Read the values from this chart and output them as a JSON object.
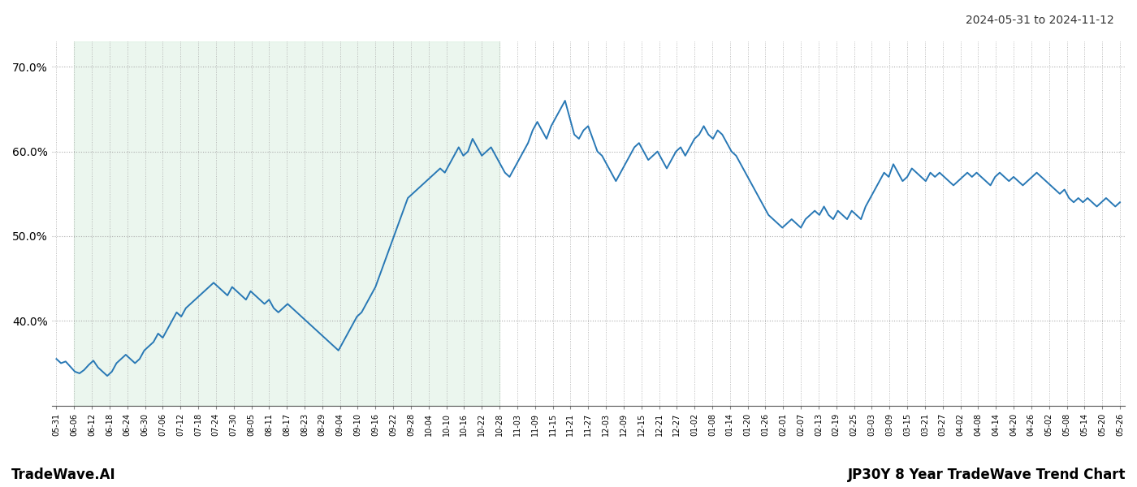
{
  "title_right": "2024-05-31 to 2024-11-12",
  "footer_left": "TradeWave.AI",
  "footer_right": "JP30Y 8 Year TradeWave Trend Chart",
  "line_color": "#2878b5",
  "line_width": 1.4,
  "bg_color": "#ffffff",
  "green_shade_color": "#d4edda",
  "green_shade_alpha": 0.45,
  "ylim": [
    30,
    73
  ],
  "ytick_values": [
    40.0,
    50.0,
    60.0,
    70.0
  ],
  "ytick_labels": [
    "40.0%",
    "50.0%",
    "60.0%",
    "70.0%"
  ],
  "x_tick_labels": [
    "05-31",
    "06-06",
    "06-12",
    "06-18",
    "06-24",
    "06-30",
    "07-06",
    "07-12",
    "07-18",
    "07-24",
    "07-30",
    "08-05",
    "08-11",
    "08-17",
    "08-23",
    "08-29",
    "09-04",
    "09-10",
    "09-16",
    "09-22",
    "09-28",
    "10-04",
    "10-10",
    "10-16",
    "10-22",
    "10-28",
    "11-03",
    "11-09",
    "11-15",
    "11-21",
    "11-27",
    "12-03",
    "12-09",
    "12-15",
    "12-21",
    "12-27",
    "01-02",
    "01-08",
    "01-14",
    "01-20",
    "01-26",
    "02-01",
    "02-07",
    "02-13",
    "02-19",
    "02-25",
    "03-03",
    "03-09",
    "03-15",
    "03-21",
    "03-27",
    "04-02",
    "04-08",
    "04-14",
    "04-20",
    "04-26",
    "05-02",
    "05-08",
    "05-14",
    "05-20",
    "05-26"
  ],
  "y_data": [
    35.5,
    35.0,
    35.2,
    34.6,
    34.0,
    33.8,
    34.2,
    34.8,
    35.3,
    34.5,
    34.0,
    33.5,
    34.0,
    35.0,
    35.5,
    36.0,
    35.5,
    35.0,
    35.5,
    36.5,
    37.0,
    37.5,
    38.5,
    38.0,
    39.0,
    40.0,
    41.0,
    40.5,
    41.5,
    42.0,
    42.5,
    43.0,
    43.5,
    44.0,
    44.5,
    44.0,
    43.5,
    43.0,
    44.0,
    43.5,
    43.0,
    42.5,
    43.5,
    43.0,
    42.5,
    42.0,
    42.5,
    41.5,
    41.0,
    41.5,
    42.0,
    41.5,
    41.0,
    40.5,
    40.0,
    39.5,
    39.0,
    38.5,
    38.0,
    37.5,
    37.0,
    36.5,
    37.5,
    38.5,
    39.5,
    40.5,
    41.0,
    42.0,
    43.0,
    44.0,
    45.5,
    47.0,
    48.5,
    50.0,
    51.5,
    53.0,
    54.5,
    55.0,
    55.5,
    56.0,
    56.5,
    57.0,
    57.5,
    58.0,
    57.5,
    58.5,
    59.5,
    60.5,
    59.5,
    60.0,
    61.5,
    60.5,
    59.5,
    60.0,
    60.5,
    59.5,
    58.5,
    57.5,
    57.0,
    58.0,
    59.0,
    60.0,
    61.0,
    62.5,
    63.5,
    62.5,
    61.5,
    63.0,
    64.0,
    65.0,
    66.0,
    64.0,
    62.0,
    61.5,
    62.5,
    63.0,
    61.5,
    60.0,
    59.5,
    58.5,
    57.5,
    56.5,
    57.5,
    58.5,
    59.5,
    60.5,
    61.0,
    60.0,
    59.0,
    59.5,
    60.0,
    59.0,
    58.0,
    59.0,
    60.0,
    60.5,
    59.5,
    60.5,
    61.5,
    62.0,
    63.0,
    62.0,
    61.5,
    62.5,
    62.0,
    61.0,
    60.0,
    59.5,
    58.5,
    57.5,
    56.5,
    55.5,
    54.5,
    53.5,
    52.5,
    52.0,
    51.5,
    51.0,
    51.5,
    52.0,
    51.5,
    51.0,
    52.0,
    52.5,
    53.0,
    52.5,
    53.5,
    52.5,
    52.0,
    53.0,
    52.5,
    52.0,
    53.0,
    52.5,
    52.0,
    53.5,
    54.5,
    55.5,
    56.5,
    57.5,
    57.0,
    58.5,
    57.5,
    56.5,
    57.0,
    58.0,
    57.5,
    57.0,
    56.5,
    57.5,
    57.0,
    57.5,
    57.0,
    56.5,
    56.0,
    56.5,
    57.0,
    57.5,
    57.0,
    57.5,
    57.0,
    56.5,
    56.0,
    57.0,
    57.5,
    57.0,
    56.5,
    57.0,
    56.5,
    56.0,
    56.5,
    57.0,
    57.5,
    57.0,
    56.5,
    56.0,
    55.5,
    55.0,
    55.5,
    54.5,
    54.0,
    54.5,
    54.0,
    54.5,
    54.0,
    53.5,
    54.0,
    54.5,
    54.0,
    53.5,
    54.0
  ],
  "green_start_label": "06-06",
  "green_end_label": "10-28"
}
